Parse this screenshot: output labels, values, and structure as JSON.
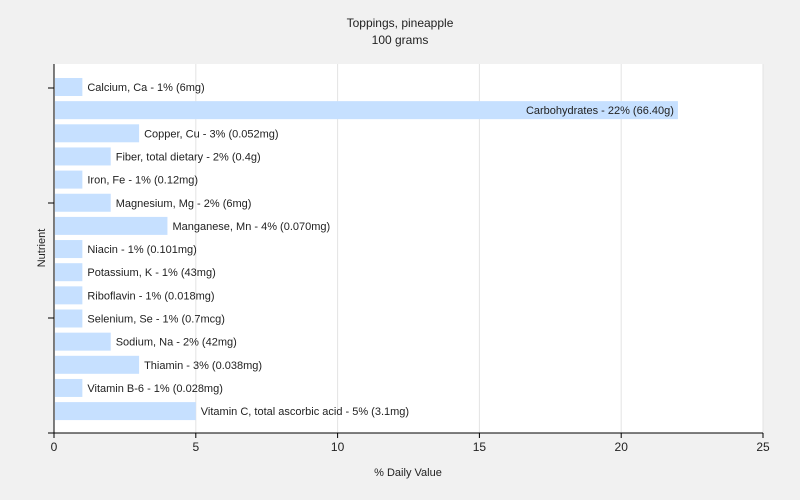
{
  "chart_data": {
    "type": "bar",
    "orientation": "horizontal",
    "title": "Toppings, pineapple",
    "subtitle": "100 grams",
    "xlabel": "% Daily Value",
    "ylabel": "Nutrient",
    "xlim": [
      0,
      25
    ],
    "xticks": [
      0,
      5,
      10,
      15,
      20,
      25
    ],
    "grid": true,
    "bar_color": "#c6e0ff",
    "categories": [
      "Calcium, Ca",
      "Carbohydrates",
      "Copper, Cu",
      "Fiber, total dietary",
      "Iron, Fe",
      "Magnesium, Mg",
      "Manganese, Mn",
      "Niacin",
      "Potassium, K",
      "Riboflavin",
      "Selenium, Se",
      "Sodium, Na",
      "Thiamin",
      "Vitamin B-6",
      "Vitamin C, total ascorbic acid"
    ],
    "values": [
      1,
      22,
      3,
      2,
      1,
      2,
      4,
      1,
      1,
      1,
      1,
      2,
      3,
      1,
      5
    ],
    "labels": [
      "Calcium, Ca - 1% (6mg)",
      "Carbohydrates - 22% (66.40g)",
      "Copper, Cu - 3% (0.052mg)",
      "Fiber, total dietary - 2% (0.4g)",
      "Iron, Fe - 1% (0.12mg)",
      "Magnesium, Mg - 2% (6mg)",
      "Manganese, Mn - 4% (0.070mg)",
      "Niacin - 1% (0.101mg)",
      "Potassium, K - 1% (43mg)",
      "Riboflavin - 1% (0.018mg)",
      "Selenium, Se - 1% (0.7mcg)",
      "Sodium, Na - 2% (42mg)",
      "Thiamin - 3% (0.038mg)",
      "Vitamin B-6 - 1% (0.028mg)",
      "Vitamin C, total ascorbic acid - 5% (3.1mg)"
    ]
  }
}
